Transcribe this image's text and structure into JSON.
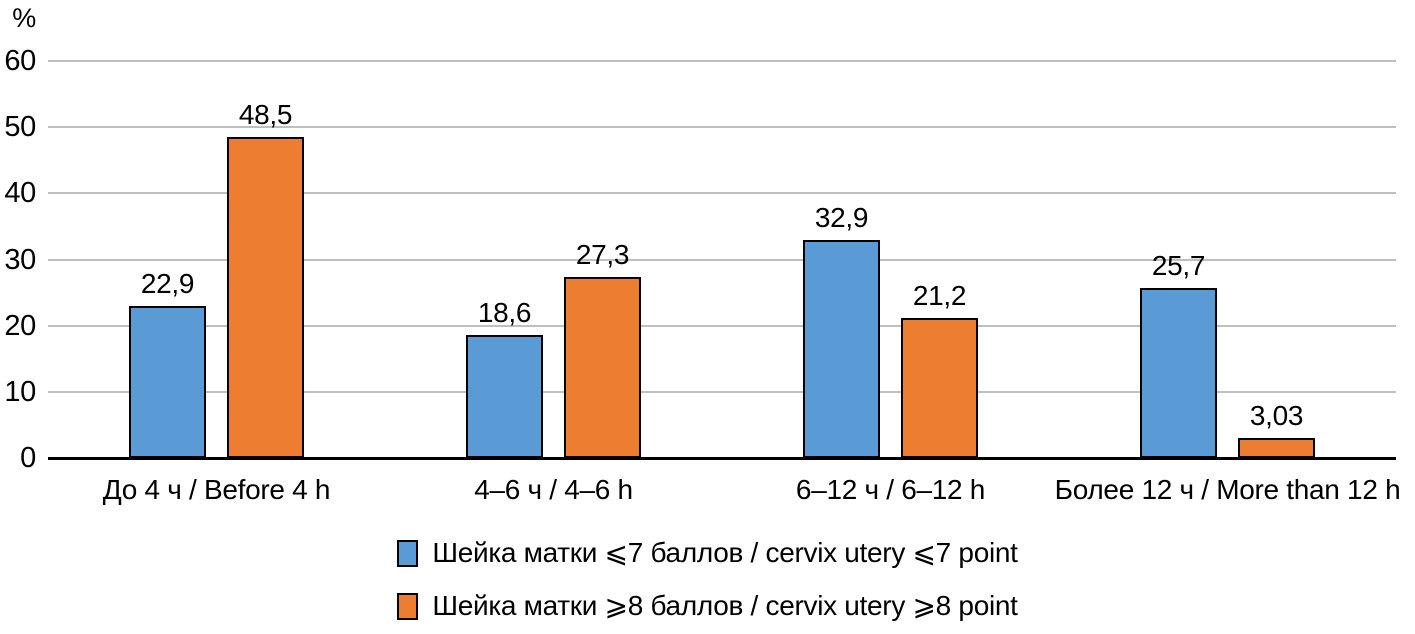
{
  "chart_data": {
    "type": "bar",
    "title": "",
    "xlabel": "",
    "ylabel": "%",
    "ylim": [
      0,
      60
    ],
    "yticks": [
      0,
      10,
      20,
      30,
      40,
      50,
      60
    ],
    "grid": true,
    "gridline_color": "#bfbfbf",
    "axis_color": "#000000",
    "legend_position": "bottom",
    "categories": [
      "До 4 ч / Before 4 h",
      "4–6 ч / 4–6 h",
      "6–12 ч / 6–12 h",
      "Более 12 ч / More than 12 h"
    ],
    "series": [
      {
        "name": "Шейка матки ⩽7 баллов / cervix utery ⩽7 point",
        "color": "#5b9bd5",
        "border_color": "#000000",
        "values": [
          22.9,
          18.6,
          32.9,
          25.7
        ],
        "value_labels": [
          "22,9",
          "18,6",
          "32,9",
          "25,7"
        ]
      },
      {
        "name": "Шейка матки ⩾8 баллов / cervix utery ⩾8 point",
        "color": "#ed7d31",
        "border_color": "#000000",
        "values": [
          48.5,
          27.3,
          21.2,
          3.03
        ],
        "value_labels": [
          "48,5",
          "27,3",
          "21,2",
          "3,03"
        ]
      }
    ]
  }
}
